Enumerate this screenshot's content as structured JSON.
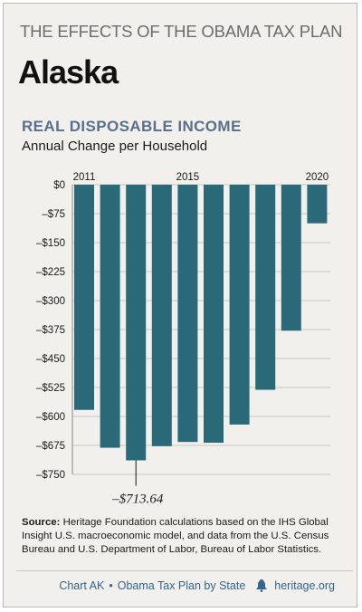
{
  "header": {
    "supertitle": "THE EFFECTS OF THE OBAMA TAX PLAN",
    "state": "Alaska"
  },
  "chart_data": {
    "type": "bar",
    "title": "REAL DISPOSABLE INCOME",
    "subtitle": "Annual Change per Household",
    "categories": [
      "2011",
      "2012",
      "2013",
      "2014",
      "2015",
      "2016",
      "2017",
      "2018",
      "2019",
      "2020"
    ],
    "x_tick_labels": [
      "2011",
      "2015",
      "2020"
    ],
    "values": [
      -583,
      -681,
      -713.64,
      -677,
      -666,
      -668,
      -621,
      -531,
      -378,
      -100
    ],
    "y_ticks": [
      0,
      -75,
      -150,
      -225,
      -300,
      -375,
      -450,
      -525,
      -600,
      -675,
      -750
    ],
    "y_tick_labels": [
      "$0",
      "–$75",
      "–$150",
      "–$225",
      "–$300",
      "–$375",
      "–$450",
      "–$525",
      "–$600",
      "–$675",
      "–$750"
    ],
    "ylim": [
      -750,
      0
    ],
    "annotation": {
      "category": "2013",
      "label": "–$713.64"
    },
    "grid": true,
    "bar_color": "#2a6a78"
  },
  "source": {
    "label": "Source:",
    "text": " Heritage Foundation calculations based on the IHS Global Insight U.S. macroeconomic model, and data from the U.S. Census Bureau and U.S. Department of Labor, Bureau of Labor Statistics."
  },
  "footer": {
    "chart_id": "Chart AK",
    "series": "Obama Tax Plan by State",
    "site": "heritage.org",
    "icon": "liberty-bell-icon"
  },
  "colors": {
    "background": "#f1f0ec",
    "title_accent": "#58708c",
    "footer_text": "#35648f"
  }
}
